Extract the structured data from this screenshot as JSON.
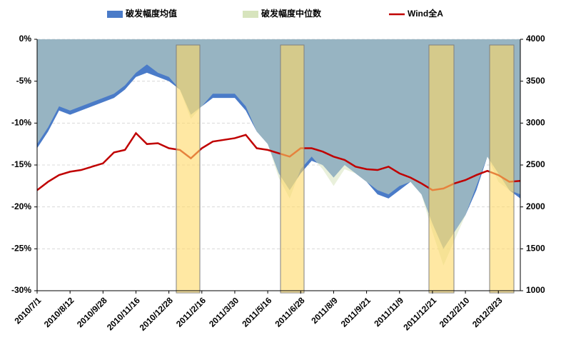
{
  "chart_data": {
    "type": "area_line",
    "categories": [
      "2010/7/1",
      null,
      null,
      "2010/8/12",
      null,
      null,
      "2010/9/28",
      null,
      null,
      "2010/11/16",
      null,
      null,
      "2010/12/28",
      null,
      null,
      "2011/2/16",
      null,
      null,
      "2011/3/30",
      null,
      null,
      "2011/5/16",
      null,
      null,
      "2011/6/28",
      null,
      null,
      "2011/8/9",
      null,
      null,
      "2011/9/21",
      null,
      null,
      "2011/11/9",
      null,
      null,
      "2011/12/21",
      null,
      null,
      "2012/2/10",
      null,
      null,
      "2012/3/23",
      null,
      null
    ],
    "series": [
      {
        "name": "破发幅度均值",
        "color": "#4a7bc8",
        "values": [
          -13,
          -11,
          -8.5,
          -9,
          -8.5,
          -8,
          -7.5,
          -7,
          -6,
          -4.5,
          -4,
          -4.5,
          -5,
          -6,
          -9,
          -8,
          -7,
          -7,
          -7,
          -8.5,
          -11,
          -12.5,
          -16,
          -18,
          -16,
          -14.5,
          -15,
          -16.5,
          -15,
          -16,
          -17,
          -18.5,
          -19,
          -18,
          -17,
          -18.5,
          -22,
          -25,
          -23,
          -21,
          -18,
          -14,
          -16,
          -18,
          -19
        ]
      },
      {
        "name": "破发幅度中位数",
        "color": "#d7e4bd",
        "values": [
          -12.5,
          -10.5,
          -8,
          -8.5,
          -8,
          -7.5,
          -7,
          -6.5,
          -5.5,
          -4,
          -3,
          -4,
          -4.5,
          -6,
          -9.5,
          -8,
          -6.5,
          -6.5,
          -6.5,
          -8,
          -11,
          -12.5,
          -16.5,
          -19,
          -15.5,
          -14,
          -15.5,
          -17.5,
          -15.5,
          -16,
          -17,
          -18,
          -18.5,
          -17.5,
          -17,
          -18.5,
          -23,
          -27,
          -24,
          -21,
          -17.5,
          -14,
          -17,
          -18,
          -18.5
        ]
      },
      {
        "name": "Wind全A",
        "color": "#c00000",
        "axis": "y2",
        "values": [
          2200,
          2300,
          2380,
          2420,
          2440,
          2480,
          2520,
          2650,
          2680,
          2880,
          2750,
          2760,
          2700,
          2680,
          2580,
          2700,
          2780,
          2800,
          2820,
          2860,
          2700,
          2680,
          2640,
          2600,
          2700,
          2700,
          2660,
          2600,
          2560,
          2480,
          2450,
          2440,
          2480,
          2400,
          2350,
          2280,
          2200,
          2220,
          2280,
          2320,
          2380,
          2430,
          2380,
          2300,
          2310
        ]
      }
    ],
    "ylim": [
      -30,
      0
    ],
    "yticks": [
      {
        "value": 0,
        "label": "0%"
      },
      {
        "value": -5,
        "label": "-5%"
      },
      {
        "value": -10,
        "label": "-10%"
      },
      {
        "value": -15,
        "label": "-15%"
      },
      {
        "value": -20,
        "label": "-20%"
      },
      {
        "value": -25,
        "label": "-25%"
      },
      {
        "value": -30,
        "label": "-30%"
      }
    ],
    "y2lim": [
      1000,
      4000
    ],
    "y2ticks": [
      1000,
      1500,
      2000,
      2500,
      3000,
      3500,
      4000
    ],
    "grid": true,
    "legend": "top"
  }
}
